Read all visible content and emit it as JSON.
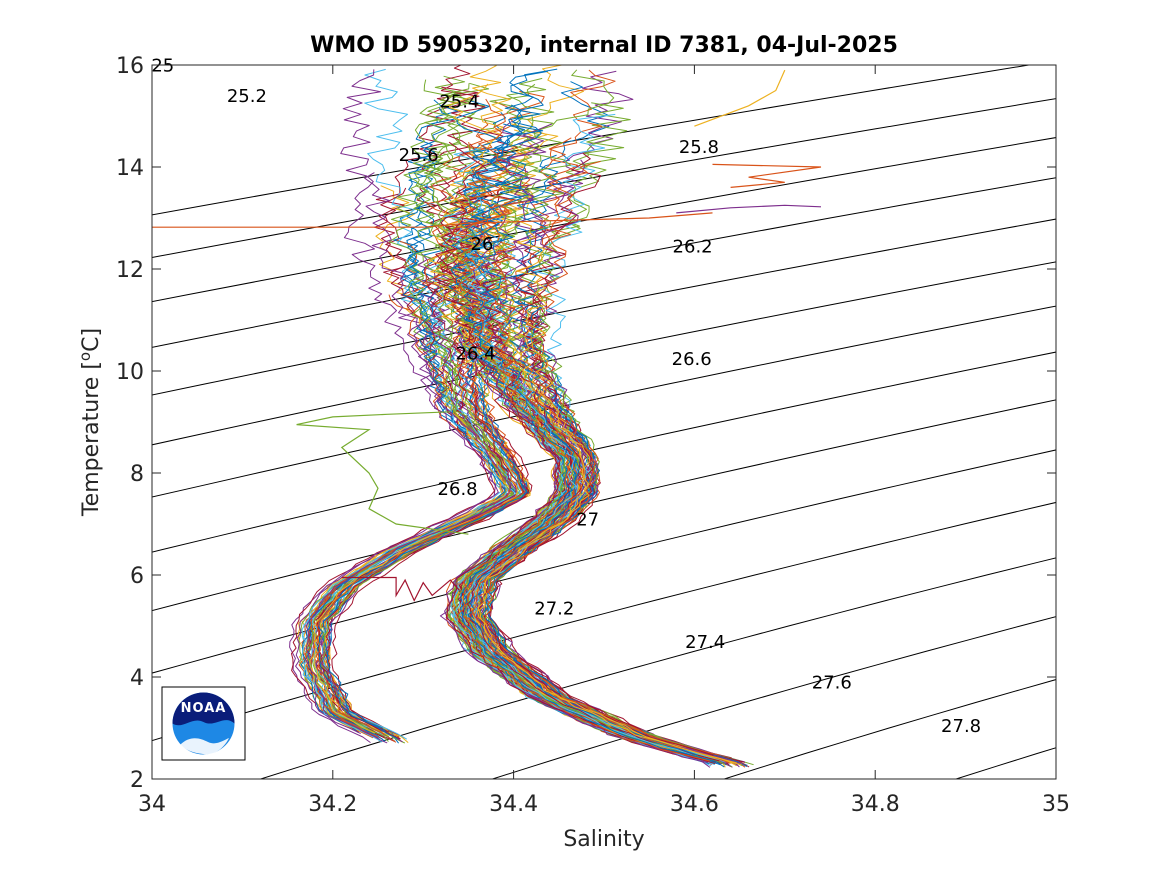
{
  "chart_data": {
    "type": "line",
    "title": "WMO ID 5905320, internal ID 7381, 04-Jul-2025",
    "xlabel": "Salinity",
    "ylabel_main": "Temperature [",
    "ylabel_sup": "o",
    "ylabel_end": "C]",
    "xlim": [
      34,
      35
    ],
    "ylim": [
      2,
      16
    ],
    "x_ticks": [
      34,
      34.2,
      34.4,
      34.6,
      34.8,
      35
    ],
    "x_tick_labels": [
      "34",
      "34.2",
      "34.4",
      "34.6",
      "34.8",
      "35"
    ],
    "y_ticks": [
      2,
      4,
      6,
      8,
      10,
      12,
      14,
      16
    ],
    "y_tick_labels": [
      "2",
      "4",
      "6",
      "8",
      "10",
      "12",
      "14",
      "16"
    ],
    "grid": false,
    "isopycnals": {
      "color": "#000000",
      "levels": [
        25,
        25.2,
        25.4,
        25.6,
        25.8,
        26,
        26.2,
        26.4,
        26.6,
        26.8,
        27,
        27.2,
        27.4,
        27.6,
        27.8
      ],
      "labels": [
        {
          "text": "25",
          "s": 34.012,
          "t": 15.95
        },
        {
          "text": "25.2",
          "s": 34.105,
          "t": 15.35
        },
        {
          "text": "25.4",
          "s": 34.34,
          "t": 15.25
        },
        {
          "text": "25.6",
          "s": 34.295,
          "t": 14.2
        },
        {
          "text": "25.8",
          "s": 34.605,
          "t": 14.35
        },
        {
          "text": "26",
          "s": 34.365,
          "t": 12.45
        },
        {
          "text": "26.2",
          "s": 34.598,
          "t": 12.4
        },
        {
          "text": "26.4",
          "s": 34.358,
          "t": 10.3
        },
        {
          "text": "26.6",
          "s": 34.597,
          "t": 10.2
        },
        {
          "text": "26.8",
          "s": 34.338,
          "t": 7.65
        },
        {
          "text": "27",
          "s": 34.482,
          "t": 7.05
        },
        {
          "text": "27.2",
          "s": 34.445,
          "t": 5.3
        },
        {
          "text": "27.4",
          "s": 34.612,
          "t": 4.65
        },
        {
          "text": "27.6",
          "s": 34.752,
          "t": 3.85
        },
        {
          "text": "27.8",
          "s": 34.895,
          "t": 3.0
        }
      ]
    },
    "profile_colors": [
      "#0072BD",
      "#D95319",
      "#EDB120",
      "#7E2F8E",
      "#77AC30",
      "#4DBEEE",
      "#A2142F"
    ],
    "profile_envelopes": [
      {
        "name": "",
        "count": 60,
        "jitter_s": 0.006,
        "upper_spread": 0.12,
        "points": [
          {
            "t": 2.75,
            "s": 34.262
          },
          {
            "t": 3.3,
            "s": 34.2
          },
          {
            "t": 4.2,
            "s": 34.175
          },
          {
            "t": 5.1,
            "s": 34.178
          },
          {
            "t": 5.8,
            "s": 34.21
          },
          {
            "t": 6.5,
            "s": 34.275
          },
          {
            "t": 7.2,
            "s": 34.36
          },
          {
            "t": 7.6,
            "s": 34.4
          },
          {
            "t": 8.3,
            "s": 34.38
          },
          {
            "t": 9.2,
            "s": 34.34
          },
          {
            "t": 10.5,
            "s": 34.32
          },
          {
            "t": 12.0,
            "s": 34.3
          },
          {
            "t": 13.5,
            "s": 34.3
          },
          {
            "t": 15.0,
            "s": 34.32
          },
          {
            "t": 16.0,
            "s": 34.33
          }
        ]
      },
      {
        "name": "",
        "count": 110,
        "jitter_s": 0.008,
        "upper_spread": 0.14,
        "points": [
          {
            "t": 2.3,
            "s": 34.64
          },
          {
            "t": 2.8,
            "s": 34.54
          },
          {
            "t": 3.6,
            "s": 34.44
          },
          {
            "t": 4.5,
            "s": 34.375
          },
          {
            "t": 5.2,
            "s": 34.35
          },
          {
            "t": 5.9,
            "s": 34.36
          },
          {
            "t": 6.5,
            "s": 34.4
          },
          {
            "t": 7.0,
            "s": 34.44
          },
          {
            "t": 7.6,
            "s": 34.47
          },
          {
            "t": 8.3,
            "s": 34.47
          },
          {
            "t": 9.2,
            "s": 34.43
          },
          {
            "t": 10.5,
            "s": 34.39
          },
          {
            "t": 12.0,
            "s": 34.38
          },
          {
            "t": 13.5,
            "s": 34.4
          },
          {
            "t": 15.0,
            "s": 34.42
          },
          {
            "t": 16.0,
            "s": 34.43
          }
        ]
      }
    ],
    "outlier_profiles": [
      {
        "color": "#D95319",
        "points": [
          [
            34.0,
            12.82
          ],
          [
            34.3,
            12.82
          ],
          [
            34.35,
            12.9
          ],
          [
            34.45,
            12.95
          ],
          [
            34.55,
            13.0
          ],
          [
            34.62,
            13.1
          ]
        ]
      },
      {
        "color": "#77AC30",
        "points": [
          [
            34.33,
            9.2
          ],
          [
            34.26,
            9.15
          ],
          [
            34.2,
            9.1
          ],
          [
            34.16,
            8.95
          ],
          [
            34.24,
            8.85
          ],
          [
            34.21,
            8.5
          ],
          [
            34.24,
            8.0
          ],
          [
            34.25,
            7.7
          ],
          [
            34.24,
            7.3
          ],
          [
            34.27,
            7.0
          ],
          [
            34.35,
            6.8
          ]
        ]
      },
      {
        "color": "#A2142F",
        "points": [
          [
            34.21,
            5.95
          ],
          [
            34.27,
            5.95
          ],
          [
            34.27,
            5.6
          ],
          [
            34.28,
            5.9
          ],
          [
            34.29,
            5.5
          ],
          [
            34.3,
            5.85
          ],
          [
            34.31,
            5.6
          ],
          [
            34.33,
            5.9
          ],
          [
            34.34,
            5.7
          ]
        ]
      },
      {
        "color": "#D95319",
        "points": [
          [
            34.64,
            13.6
          ],
          [
            34.7,
            13.7
          ],
          [
            34.66,
            13.8
          ],
          [
            34.74,
            14.0
          ],
          [
            34.62,
            14.05
          ]
        ]
      },
      {
        "color": "#EDB120",
        "points": [
          [
            34.6,
            14.8
          ],
          [
            34.66,
            15.2
          ],
          [
            34.69,
            15.5
          ],
          [
            34.7,
            15.9
          ]
        ]
      },
      {
        "color": "#7E2F8E",
        "points": [
          [
            34.58,
            13.1
          ],
          [
            34.64,
            13.2
          ],
          [
            34.7,
            13.25
          ],
          [
            34.74,
            13.22
          ]
        ]
      }
    ]
  },
  "logo": {
    "text": "NOAA",
    "name": "noaa-logo"
  }
}
